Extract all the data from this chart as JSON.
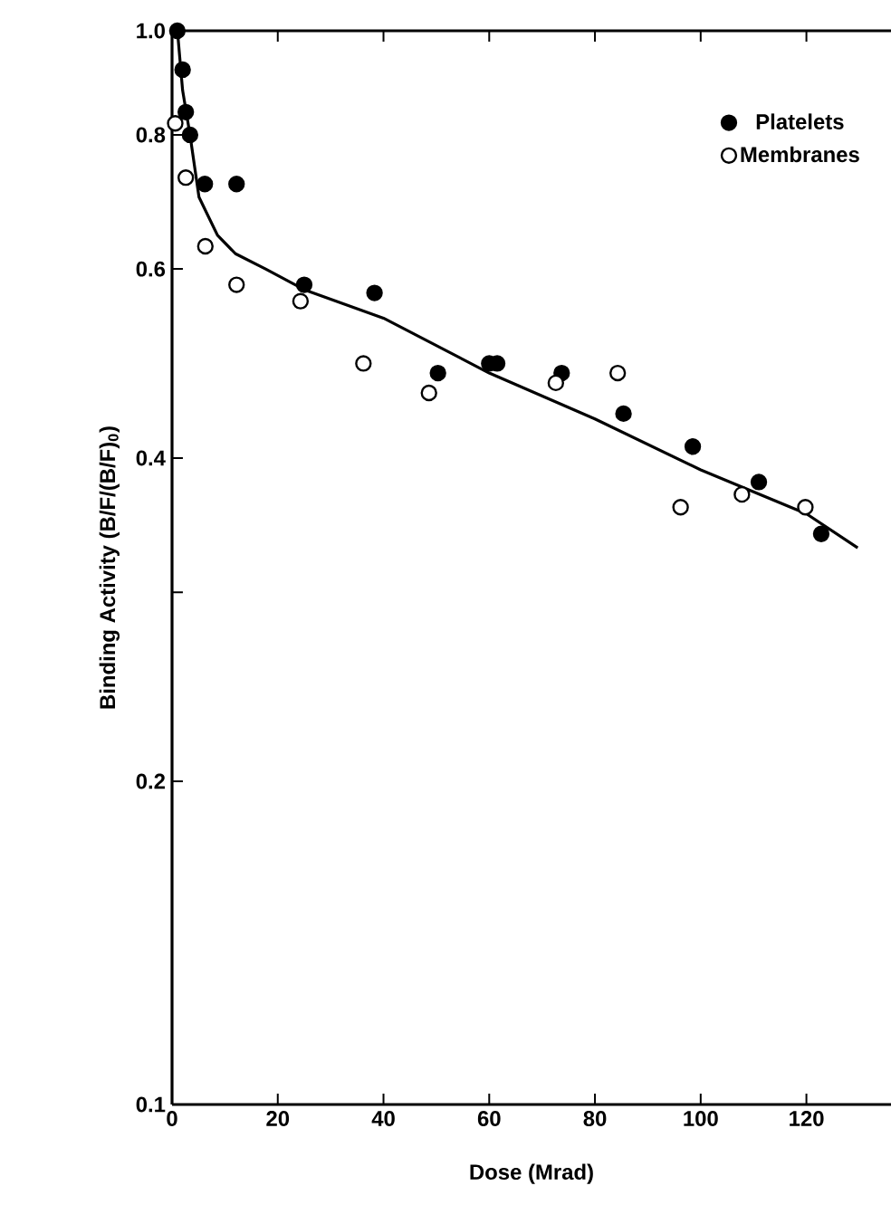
{
  "chart_data": {
    "type": "scatter",
    "xlabel": "Dose (Mrad)",
    "ylabel": "Binding Activity (B/F/(B/F)$_{0}$)",
    "log": "y",
    "xlim": [
      0,
      136
    ],
    "ylim": [
      0.1,
      1.0
    ],
    "xticks": [
      0,
      20,
      40,
      60,
      80,
      100,
      120
    ],
    "yticks": [
      {
        "value": 0.1,
        "label": "0.1"
      },
      {
        "value": 0.2,
        "label": "0.2"
      },
      {
        "value": 0.3,
        "label": null
      },
      {
        "value": 0.4,
        "label": "0.4"
      },
      {
        "value": 0.6,
        "label": "0.6"
      },
      {
        "value": 0.8,
        "label": "0.8"
      },
      {
        "value": 1.0,
        "label": "1.0"
      }
    ],
    "grid": false,
    "legend": "top right",
    "marker": "circle",
    "series": [
      {
        "name": "Platelets",
        "color": "#000000",
        "x": [
          1,
          2,
          2.6,
          3.4,
          6.2,
          12.2,
          25,
          38.3,
          50.3,
          60,
          61.5,
          73.7,
          85.4,
          98.5,
          111,
          122.8
        ],
        "values": [
          1.0,
          0.92,
          0.84,
          0.8,
          0.72,
          0.72,
          0.58,
          0.57,
          0.48,
          0.49,
          0.49,
          0.48,
          0.44,
          0.41,
          0.38,
          0.34
        ]
      },
      {
        "name": "Membranes",
        "color": "#ffffff",
        "x": [
          0.6,
          2.6,
          6.3,
          12.2,
          24.3,
          36.2,
          48.6,
          72.6,
          84.3,
          96.2,
          107.8,
          119.8
        ],
        "values": [
          0.82,
          0.73,
          0.63,
          0.58,
          0.56,
          0.49,
          0.46,
          0.47,
          0.48,
          0.36,
          0.37,
          0.36
        ]
      },
      {
        "type": "line",
        "color": "#000000",
        "marker": "none",
        "line_style": "solid",
        "x": [
          0,
          1.1,
          2,
          3.4,
          5.1,
          8.6,
          12,
          17.7,
          25,
          40,
          60,
          80,
          100,
          120,
          129.7
        ],
        "values": [
          1.0,
          0.99,
          0.88,
          0.8,
          0.7,
          0.645,
          0.62,
          0.6,
          0.574,
          0.54,
          0.48,
          0.435,
          0.39,
          0.355,
          0.33
        ]
      }
    ]
  }
}
